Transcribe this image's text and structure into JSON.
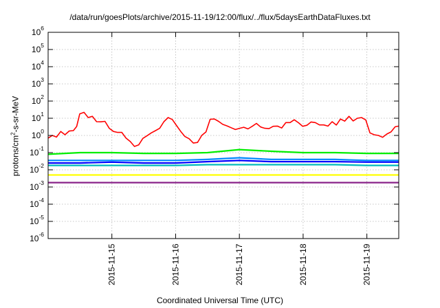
{
  "chart_data": {
    "type": "line",
    "title": "/data/run/goesPlots/archive/2015-11-19/12:00/flux/../flux/5daysEarthDataFluxes.txt",
    "xlabel": "Coordinated Universal Time (UTC)",
    "ylabel_parts": {
      "pre": "protons/cm",
      "sup": "2",
      "post": "-s-sr-MeV"
    },
    "yscale": "log",
    "ylim": [
      1e-06,
      1000000.0
    ],
    "xlim": [
      "2015-11-14 00:00",
      "2015-11-19 12:00"
    ],
    "grid": true,
    "y_ticks": [
      {
        "base": "10",
        "exp": "-6"
      },
      {
        "base": "10",
        "exp": "-5"
      },
      {
        "base": "10",
        "exp": "-4"
      },
      {
        "base": "10",
        "exp": "-3"
      },
      {
        "base": "10",
        "exp": "-2"
      },
      {
        "base": "10",
        "exp": "-1"
      },
      {
        "base": "10",
        "exp": "0"
      },
      {
        "base": "10",
        "exp": "1"
      },
      {
        "base": "10",
        "exp": "2"
      },
      {
        "base": "10",
        "exp": "3"
      },
      {
        "base": "10",
        "exp": "4"
      },
      {
        "base": "10",
        "exp": "5"
      },
      {
        "base": "10",
        "exp": "6"
      }
    ],
    "x_ticks": [
      "2015-11-15",
      "2015-11-16",
      "2015-11-17",
      "2015-11-18",
      "2015-11-19"
    ],
    "series": [
      {
        "color": "#ff0000",
        "x": [
          "2015-11-14 00:00",
          "2015-11-14 01:35",
          "2015-11-14 03:10",
          "2015-11-14 04:45",
          "2015-11-14 06:20",
          "2015-11-14 07:55",
          "2015-11-14 09:30",
          "2015-11-14 10:45",
          "2015-11-14 11:55",
          "2015-11-14 13:30",
          "2015-11-14 15:05",
          "2015-11-14 16:40",
          "2015-11-14 18:15",
          "2015-11-14 19:50",
          "2015-11-14 21:25",
          "2015-11-14 23:00",
          "2015-11-15 00:35",
          "2015-11-15 02:10",
          "2015-11-15 03:45",
          "2015-11-15 05:20",
          "2015-11-15 06:55",
          "2015-11-15 08:30",
          "2015-11-15 10:05",
          "2015-11-15 11:40",
          "2015-11-15 13:15",
          "2015-11-15 14:50",
          "2015-11-15 16:25",
          "2015-11-15 18:00",
          "2015-11-15 19:35",
          "2015-11-15 21:10",
          "2015-11-15 22:45",
          "2015-11-16 00:20",
          "2015-11-16 01:55",
          "2015-11-16 03:30",
          "2015-11-16 05:05",
          "2015-11-16 06:40",
          "2015-11-16 08:15",
          "2015-11-16 09:00",
          "2015-11-16 09:50",
          "2015-11-16 11:25",
          "2015-11-16 13:00",
          "2015-11-16 14:35",
          "2015-11-16 16:10",
          "2015-11-16 17:45",
          "2015-11-16 19:20",
          "2015-11-16 20:55",
          "2015-11-16 22:30",
          "2015-11-17 00:05",
          "2015-11-17 01:40",
          "2015-11-17 03:15",
          "2015-11-17 04:50",
          "2015-11-17 06:25",
          "2015-11-17 08:00",
          "2015-11-17 09:35",
          "2015-11-17 11:10",
          "2015-11-17 12:45",
          "2015-11-17 14:20",
          "2015-11-17 15:55",
          "2015-11-17 17:30",
          "2015-11-17 19:05",
          "2015-11-17 20:40",
          "2015-11-17 22:15",
          "2015-11-17 23:50",
          "2015-11-18 01:25",
          "2015-11-18 03:00",
          "2015-11-18 04:35",
          "2015-11-18 06:10",
          "2015-11-18 07:45",
          "2015-11-18 09:20",
          "2015-11-18 10:55",
          "2015-11-18 12:30",
          "2015-11-18 14:05",
          "2015-11-18 15:40",
          "2015-11-18 17:15",
          "2015-11-18 18:50",
          "2015-11-18 20:25",
          "2015-11-18 22:00",
          "2015-11-18 23:35",
          "2015-11-19 01:10",
          "2015-11-19 02:45",
          "2015-11-19 04:20",
          "2015-11-19 05:55",
          "2015-11-19 07:30",
          "2015-11-19 09:05",
          "2015-11-19 10:40",
          "2015-11-19 12:00"
        ],
        "y": [
          0.7,
          1.0,
          0.8,
          1.7,
          1.1,
          1.8,
          1.9,
          3.3,
          18,
          22,
          11,
          13,
          6.3,
          6.2,
          6.6,
          2.6,
          1.7,
          1.5,
          1.5,
          0.7,
          0.44,
          0.23,
          0.28,
          0.67,
          0.96,
          1.4,
          1.9,
          2.6,
          6.3,
          11,
          8.5,
          3.8,
          1.7,
          0.86,
          0.64,
          0.36,
          0.39,
          0.6,
          1.0,
          1.6,
          8.7,
          9.0,
          6.6,
          4.4,
          3.6,
          2.8,
          2.2,
          2.6,
          3.0,
          2.4,
          3.4,
          5.0,
          3.1,
          2.6,
          2.5,
          3.4,
          3.5,
          2.7,
          5.6,
          5.6,
          8.2,
          5.5,
          3.4,
          3.9,
          6.1,
          5.6,
          4.1,
          4.1,
          3.5,
          6.3,
          4.0,
          9.0,
          6.8,
          13,
          7.0,
          10,
          11,
          8.0,
          1.4,
          1.1,
          1.0,
          0.78,
          1.2,
          1.6,
          3.2,
          3.5
        ]
      },
      {
        "color": "#00ee00",
        "x": [
          "2015-11-14 00:00",
          "2015-11-14 12:00",
          "2015-11-15 00:00",
          "2015-11-15 12:00",
          "2015-11-16 00:00",
          "2015-11-16 12:00",
          "2015-11-17 00:00",
          "2015-11-17 12:00",
          "2015-11-18 00:00",
          "2015-11-18 12:00",
          "2015-11-19 00:00",
          "2015-11-19 12:00"
        ],
        "y": [
          0.08,
          0.1,
          0.1,
          0.09,
          0.09,
          0.1,
          0.15,
          0.12,
          0.1,
          0.1,
          0.09,
          0.09
        ]
      },
      {
        "color": "#0000ff",
        "x": [
          "2015-11-14 00:00",
          "2015-11-14 12:00",
          "2015-11-15 00:00",
          "2015-11-15 12:00",
          "2015-11-16 00:00",
          "2015-11-16 12:00",
          "2015-11-17 00:00",
          "2015-11-17 12:00",
          "2015-11-18 00:00",
          "2015-11-18 12:00",
          "2015-11-19 00:00",
          "2015-11-19 12:00"
        ],
        "y": [
          0.025,
          0.025,
          0.028,
          0.025,
          0.025,
          0.03,
          0.035,
          0.03,
          0.03,
          0.03,
          0.028,
          0.028
        ]
      },
      {
        "color": "#0088ff",
        "x": [
          "2015-11-14 00:00",
          "2015-11-14 12:00",
          "2015-11-15 00:00",
          "2015-11-15 12:00",
          "2015-11-16 00:00",
          "2015-11-16 12:00",
          "2015-11-17 00:00",
          "2015-11-17 12:00",
          "2015-11-18 00:00",
          "2015-11-18 12:00",
          "2015-11-19 00:00",
          "2015-11-19 12:00"
        ],
        "y": [
          0.035,
          0.035,
          0.035,
          0.035,
          0.035,
          0.04,
          0.05,
          0.04,
          0.04,
          0.04,
          0.035,
          0.035
        ]
      },
      {
        "color": "#00bbbb",
        "x": [
          "2015-11-14 00:00",
          "2015-11-14 12:00",
          "2015-11-15 00:00",
          "2015-11-15 12:00",
          "2015-11-16 00:00",
          "2015-11-16 12:00",
          "2015-11-17 00:00",
          "2015-11-17 12:00",
          "2015-11-18 00:00",
          "2015-11-18 12:00",
          "2015-11-19 00:00",
          "2015-11-19 12:00"
        ],
        "y": [
          0.018,
          0.018,
          0.018,
          0.018,
          0.018,
          0.02,
          0.02,
          0.02,
          0.02,
          0.02,
          0.018,
          0.018
        ]
      },
      {
        "color": "#ffff00",
        "x": [
          "2015-11-14 00:00",
          "2015-11-14 12:00",
          "2015-11-15 00:00",
          "2015-11-15 12:00",
          "2015-11-16 00:00",
          "2015-11-16 12:00",
          "2015-11-17 00:00",
          "2015-11-17 12:00",
          "2015-11-18 00:00",
          "2015-11-18 12:00",
          "2015-11-19 00:00",
          "2015-11-19 12:00"
        ],
        "y": [
          0.005,
          0.005,
          0.005,
          0.005,
          0.005,
          0.005,
          0.005,
          0.005,
          0.005,
          0.005,
          0.005,
          0.005
        ]
      },
      {
        "color": "#882288",
        "x": [
          "2015-11-14 00:00",
          "2015-11-14 12:00",
          "2015-11-15 00:00",
          "2015-11-15 12:00",
          "2015-11-16 00:00",
          "2015-11-16 12:00",
          "2015-11-17 00:00",
          "2015-11-17 12:00",
          "2015-11-18 00:00",
          "2015-11-18 12:00",
          "2015-11-19 00:00",
          "2015-11-19 12:00"
        ],
        "y": [
          0.0018,
          0.0018,
          0.0018,
          0.0018,
          0.0018,
          0.0018,
          0.0018,
          0.0018,
          0.0018,
          0.0018,
          0.0018,
          0.0018
        ]
      }
    ]
  }
}
